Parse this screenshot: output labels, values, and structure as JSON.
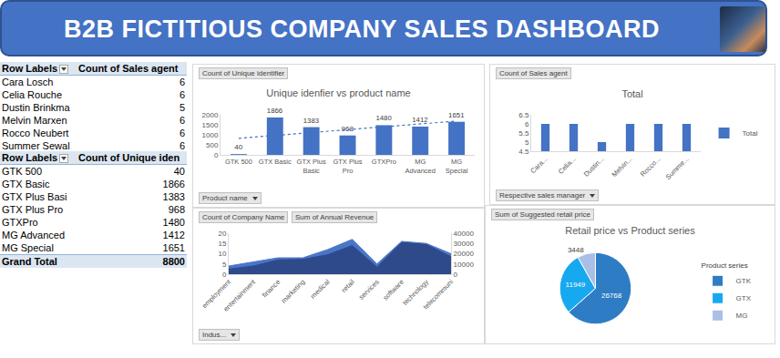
{
  "header": {
    "title": "B2B FICTITIOUS COMPANY SALES DASHBOARD"
  },
  "pivot_tables": [
    {
      "columns": [
        "Row Labels",
        "Count of Sales agent"
      ],
      "rows": [
        [
          "Cara Losch",
          6
        ],
        [
          "Celia Rouche",
          6
        ],
        [
          "Dustin Brinkma",
          5
        ],
        [
          "Melvin Marxen",
          6
        ],
        [
          "Rocco Neubert",
          6
        ],
        [
          "Summer Sewal",
          6
        ]
      ]
    },
    {
      "columns": [
        "Row Labels",
        "Count of Unique iden"
      ],
      "rows": [
        [
          "GTK 500",
          40
        ],
        [
          "GTX Basic",
          1866
        ],
        [
          "GTX Plus Basi",
          1383
        ],
        [
          "GTX Plus Pro",
          968
        ],
        [
          "GTXPro",
          1480
        ],
        [
          "MG Advanced",
          1412
        ],
        [
          "MG Special",
          1651
        ]
      ],
      "total": [
        "Grand Total",
        8800
      ]
    }
  ],
  "chart_data": [
    {
      "type": "bar",
      "title": "Unique idenfier vs product name",
      "field_buttons": {
        "top": [
          "Count of Unique identifier"
        ],
        "bottom": [
          "Product name"
        ]
      },
      "categories": [
        "GTK 500",
        "GTX Basic",
        "GTX Plus Basic",
        "GTX Plus Pro",
        "GTXPro",
        "MG Advanced",
        "MG Special"
      ],
      "series": [
        {
          "type": "bar",
          "color": "#4472c4",
          "values": [
            40,
            1866,
            1383,
            968,
            1480,
            1412,
            1651
          ]
        },
        {
          "type": "line",
          "line_style": "dotted",
          "color": "#4472c4",
          "values": [
            826,
            970,
            1113,
            1257,
            1401,
            1544,
            1688
          ]
        }
      ],
      "ylim": [
        0,
        2000
      ],
      "yticks": [
        0,
        500,
        1000,
        1500,
        2000
      ],
      "data_labels": true,
      "grid": false
    },
    {
      "type": "bar",
      "title": "Total",
      "field_buttons": {
        "top": [
          "Count of Sales agent"
        ],
        "bottom": [
          "Respective sales manager"
        ]
      },
      "categories": [
        "Cara...",
        "Celia...",
        "Dustin...",
        "Melvin...",
        "Rocco...",
        "Summe..."
      ],
      "series": [
        {
          "name": "Total",
          "color": "#4472c4",
          "values": [
            6,
            6,
            5,
            6,
            6,
            6
          ]
        }
      ],
      "ylim": [
        4.5,
        6.5
      ],
      "yticks": [
        4.5,
        5,
        5.5,
        6,
        6.5
      ],
      "legend": "right",
      "grid": false
    },
    {
      "type": "area",
      "field_buttons": {
        "top": [
          "Count of Company Name",
          "Sum of Annual Revenue"
        ],
        "bottom": [
          "Indus..."
        ]
      },
      "categories": [
        "employment",
        "entertainment",
        "finance",
        "marketing",
        "medical",
        "retail",
        "services",
        "software",
        "technology",
        "telecommuni"
      ],
      "series": [
        {
          "color": "#4a76c9",
          "values": [
            4,
            6,
            8,
            8,
            12,
            17,
            5,
            16,
            15,
            10
          ]
        },
        {
          "color": "#2e4a8b",
          "axis": "y2",
          "values": [
            5000,
            8000,
            14000,
            14500,
            19000,
            28000,
            7000,
            31000,
            29000,
            17000
          ]
        }
      ],
      "ylim": [
        0,
        20
      ],
      "yticks": [
        0,
        5,
        10,
        15,
        20
      ],
      "y2lim": [
        0,
        40000
      ],
      "y2ticks": [
        0,
        10000,
        20000,
        30000,
        40000
      ],
      "grid": false
    },
    {
      "type": "pie",
      "title": "Retail price vs Product series",
      "field_buttons": {
        "top": [
          "Sum of Suggested retail price"
        ],
        "bottom": []
      },
      "legend_title": "Product series",
      "categories": [
        "GTK",
        "GTX",
        "MG"
      ],
      "values": [
        26768,
        11949,
        3448
      ],
      "colors": [
        "#2e7dc4",
        "#17a9ef",
        "#a9bfe6"
      ],
      "data_labels": true,
      "legend": "right"
    }
  ]
}
